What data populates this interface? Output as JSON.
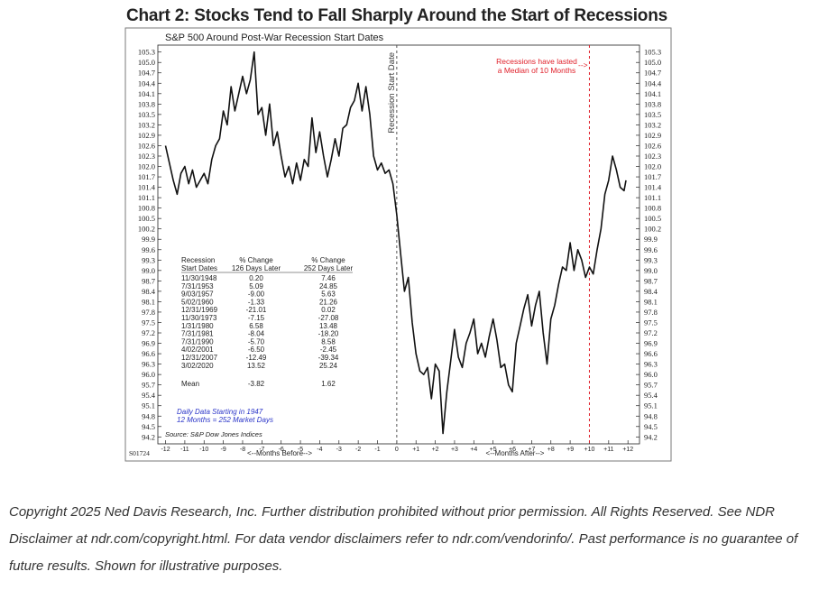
{
  "page": {
    "title": "Chart 2: Stocks Tend to Fall Sharply Around the Start of Recessions",
    "copyright": "Copyright 2025 Ned Davis Research, Inc. Further distribution prohibited without prior permission. All Rights Reserved. See NDR Disclaimer at ndr.com/copyright.html. For data vendor disclaimers refer to ndr.com/vendorinfo/. Past performance is no guarantee of future results. Shown for illustrative purposes."
  },
  "chart_data": {
    "type": "line",
    "subtitle": "S&P 500 Around Post-War Recession Start Dates",
    "chart_id": "S01724",
    "x_label_before": "<--Months Before-->",
    "x_label_after": "<--Months After-->",
    "x_ticks": [
      "-12",
      "-11",
      "-10",
      "-9",
      "-8",
      "-7",
      "-6",
      "-5",
      "-4",
      "-3",
      "-2",
      "-1",
      "0",
      "+1",
      "+2",
      "+3",
      "+4",
      "+5",
      "+6",
      "+7",
      "+8",
      "+9",
      "+10",
      "+11",
      "+12"
    ],
    "xlim": [
      -12.4,
      12.6
    ],
    "y_ticks": [
      "105.3",
      "105.0",
      "104.7",
      "104.4",
      "104.1",
      "103.8",
      "103.5",
      "103.2",
      "102.9",
      "102.6",
      "102.3",
      "102.0",
      "101.7",
      "101.4",
      "101.1",
      "100.8",
      "100.5",
      "100.2",
      "99.9",
      "99.6",
      "99.3",
      "99.0",
      "98.7",
      "98.4",
      "98.1",
      "97.8",
      "97.5",
      "97.2",
      "96.9",
      "96.6",
      "96.3",
      "96.0",
      "95.7",
      "95.4",
      "95.1",
      "94.8",
      "94.5",
      "94.2"
    ],
    "ylim": [
      94.0,
      105.5
    ],
    "vlines": [
      {
        "x": 0,
        "label": "Recession Start Date",
        "color": "#555555"
      },
      {
        "x": 10,
        "label": "Recessions have lasted a Median of 10 Months",
        "color": "#e0212b"
      }
    ],
    "annotation_line1": "Recessions have lasted",
    "annotation_line2": "a Median of 10 Months",
    "arrow": "-->",
    "series": [
      {
        "color": "#111111",
        "points": [
          [
            -12.0,
            102.6
          ],
          [
            -11.8,
            102.1
          ],
          [
            -11.6,
            101.6
          ],
          [
            -11.4,
            101.2
          ],
          [
            -11.2,
            101.8
          ],
          [
            -11.0,
            102.0
          ],
          [
            -10.8,
            101.5
          ],
          [
            -10.6,
            101.9
          ],
          [
            -10.4,
            101.4
          ],
          [
            -10.2,
            101.6
          ],
          [
            -10.0,
            101.8
          ],
          [
            -9.8,
            101.5
          ],
          [
            -9.6,
            102.2
          ],
          [
            -9.4,
            102.6
          ],
          [
            -9.2,
            102.8
          ],
          [
            -9.0,
            103.6
          ],
          [
            -8.8,
            103.2
          ],
          [
            -8.6,
            104.3
          ],
          [
            -8.4,
            103.6
          ],
          [
            -8.2,
            104.1
          ],
          [
            -8.0,
            104.6
          ],
          [
            -7.8,
            104.1
          ],
          [
            -7.6,
            104.5
          ],
          [
            -7.4,
            105.3
          ],
          [
            -7.2,
            103.5
          ],
          [
            -7.0,
            103.7
          ],
          [
            -6.8,
            102.9
          ],
          [
            -6.6,
            103.8
          ],
          [
            -6.4,
            102.6
          ],
          [
            -6.2,
            103.0
          ],
          [
            -6.0,
            102.3
          ],
          [
            -5.8,
            101.7
          ],
          [
            -5.6,
            102.0
          ],
          [
            -5.4,
            101.5
          ],
          [
            -5.2,
            102.1
          ],
          [
            -5.0,
            101.6
          ],
          [
            -4.8,
            102.2
          ],
          [
            -4.6,
            102.0
          ],
          [
            -4.4,
            103.4
          ],
          [
            -4.2,
            102.4
          ],
          [
            -4.0,
            103.0
          ],
          [
            -3.8,
            102.3
          ],
          [
            -3.6,
            101.7
          ],
          [
            -3.4,
            102.2
          ],
          [
            -3.2,
            102.8
          ],
          [
            -3.0,
            102.3
          ],
          [
            -2.8,
            103.1
          ],
          [
            -2.6,
            103.2
          ],
          [
            -2.4,
            103.7
          ],
          [
            -2.2,
            103.9
          ],
          [
            -2.0,
            104.4
          ],
          [
            -1.8,
            103.6
          ],
          [
            -1.6,
            104.3
          ],
          [
            -1.4,
            103.5
          ],
          [
            -1.2,
            102.3
          ],
          [
            -1.0,
            101.9
          ],
          [
            -0.8,
            102.1
          ],
          [
            -0.6,
            101.8
          ],
          [
            -0.4,
            101.9
          ],
          [
            -0.2,
            101.5
          ],
          [
            0.0,
            100.6
          ],
          [
            0.2,
            99.5
          ],
          [
            0.4,
            98.4
          ],
          [
            0.6,
            98.8
          ],
          [
            0.8,
            97.5
          ],
          [
            1.0,
            96.6
          ],
          [
            1.2,
            96.1
          ],
          [
            1.4,
            96.0
          ],
          [
            1.6,
            96.2
          ],
          [
            1.8,
            95.3
          ],
          [
            2.0,
            96.3
          ],
          [
            2.2,
            96.1
          ],
          [
            2.4,
            94.3
          ],
          [
            2.6,
            95.5
          ],
          [
            2.8,
            96.4
          ],
          [
            3.0,
            97.3
          ],
          [
            3.2,
            96.5
          ],
          [
            3.4,
            96.2
          ],
          [
            3.6,
            96.9
          ],
          [
            3.8,
            97.2
          ],
          [
            4.0,
            97.6
          ],
          [
            4.2,
            96.6
          ],
          [
            4.4,
            96.9
          ],
          [
            4.6,
            96.5
          ],
          [
            4.8,
            97.1
          ],
          [
            5.0,
            97.6
          ],
          [
            5.2,
            97.0
          ],
          [
            5.4,
            96.2
          ],
          [
            5.6,
            96.3
          ],
          [
            5.8,
            95.7
          ],
          [
            6.0,
            95.5
          ],
          [
            6.2,
            96.9
          ],
          [
            6.4,
            97.4
          ],
          [
            6.6,
            97.9
          ],
          [
            6.8,
            98.3
          ],
          [
            7.0,
            97.4
          ],
          [
            7.2,
            98.0
          ],
          [
            7.4,
            98.4
          ],
          [
            7.6,
            97.2
          ],
          [
            7.8,
            96.3
          ],
          [
            8.0,
            97.6
          ],
          [
            8.2,
            98.0
          ],
          [
            8.4,
            98.6
          ],
          [
            8.6,
            99.1
          ],
          [
            8.8,
            99.0
          ],
          [
            9.0,
            99.8
          ],
          [
            9.2,
            99.0
          ],
          [
            9.4,
            99.6
          ],
          [
            9.6,
            99.3
          ],
          [
            9.8,
            98.8
          ],
          [
            10.0,
            99.1
          ],
          [
            10.2,
            98.9
          ],
          [
            10.4,
            99.6
          ],
          [
            10.6,
            100.2
          ],
          [
            10.8,
            101.2
          ],
          [
            11.0,
            101.6
          ],
          [
            11.2,
            102.3
          ],
          [
            11.4,
            101.9
          ],
          [
            11.6,
            101.4
          ],
          [
            11.8,
            101.3
          ],
          [
            11.9,
            101.6
          ]
        ]
      }
    ],
    "table": {
      "headers": [
        [
          "Recession",
          "Start Dates"
        ],
        [
          "% Change",
          "126 Days Later"
        ],
        [
          "% Change",
          "252 Days Later"
        ]
      ],
      "rows": [
        [
          "11/30/1948",
          "0.20",
          "7.46"
        ],
        [
          "7/31/1953",
          "5.09",
          "24.85"
        ],
        [
          "9/03/1957",
          "-9.00",
          "5.63"
        ],
        [
          "5/02/1960",
          "-1.33",
          "21.26"
        ],
        [
          "12/31/1969",
          "-21.01",
          "0.02"
        ],
        [
          "11/30/1973",
          "-7.15",
          "-27.08"
        ],
        [
          "1/31/1980",
          "6.58",
          "13.48"
        ],
        [
          "7/31/1981",
          "-8.04",
          "-18.20"
        ],
        [
          "7/31/1990",
          "-5.70",
          "8.58"
        ],
        [
          "4/02/2001",
          "-6.50",
          "-2.45"
        ],
        [
          "12/31/2007",
          "-12.49",
          "-39.34"
        ],
        [
          "3/02/2020",
          "13.52",
          "25.24"
        ]
      ],
      "mean": [
        "Mean",
        "-3.82",
        "1.62"
      ]
    },
    "note1": "Daily Data Starting in 1947",
    "note2": "12 Months = 252 Market Days",
    "source": "Source: S&P Dow Jones Indices"
  }
}
